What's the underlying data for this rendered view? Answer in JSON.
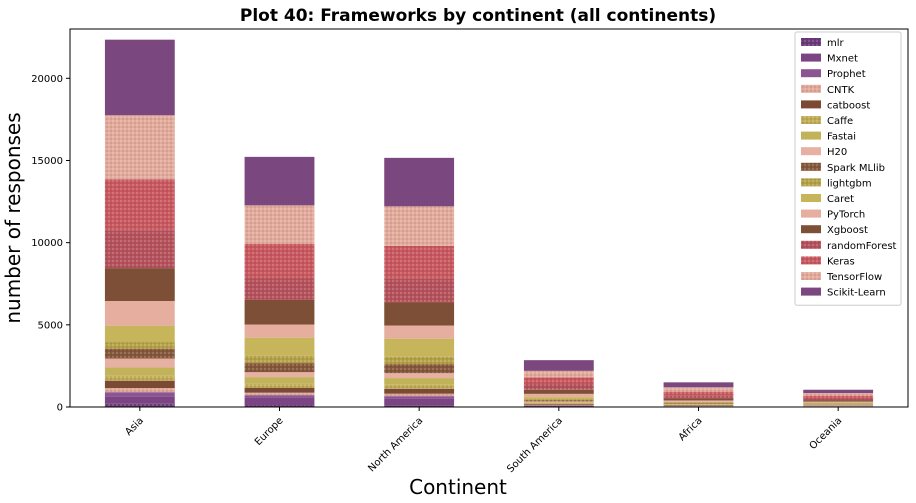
{
  "chart_data": {
    "type": "bar",
    "stacked": true,
    "title": "Plot 40: Frameworks by continent (all continents)",
    "xlabel": "Continent",
    "ylabel": "number of responses",
    "ylim": [
      0,
      23000
    ],
    "yticks": [
      0,
      5000,
      10000,
      15000,
      20000
    ],
    "categories": [
      "Asia",
      "Europe",
      "North America",
      "South America",
      "Africa",
      "Oceania"
    ],
    "legend_position": "top-right",
    "series": [
      {
        "name": "mlr",
        "color": "#6b3a7a",
        "pattern": "dots",
        "values": [
          200,
          120,
          110,
          20,
          10,
          10
        ]
      },
      {
        "name": "Mxnet",
        "color": "#7b4583",
        "pattern": "none",
        "values": [
          450,
          450,
          400,
          40,
          20,
          20
        ]
      },
      {
        "name": "Prophet",
        "color": "#8a5592",
        "pattern": "none",
        "values": [
          250,
          150,
          150,
          30,
          15,
          15
        ]
      },
      {
        "name": "CNTK",
        "color": "#e2a99b",
        "pattern": "dots",
        "values": [
          250,
          150,
          150,
          30,
          15,
          15
        ]
      },
      {
        "name": "catboost",
        "color": "#7b4a35",
        "pattern": "none",
        "values": [
          450,
          300,
          300,
          50,
          30,
          20
        ]
      },
      {
        "name": "Caffe",
        "color": "#c0ad55",
        "pattern": "dots",
        "values": [
          300,
          250,
          250,
          50,
          30,
          20
        ]
      },
      {
        "name": "Fastai",
        "color": "#c2b35a",
        "pattern": "none",
        "values": [
          500,
          400,
          400,
          60,
          40,
          30
        ]
      },
      {
        "name": "H20",
        "color": "#e6b0a2",
        "pattern": "none",
        "values": [
          550,
          300,
          300,
          60,
          40,
          30
        ]
      },
      {
        "name": "Spark MLlib",
        "color": "#85583b",
        "pattern": "dots",
        "values": [
          600,
          550,
          550,
          80,
          40,
          40
        ]
      },
      {
        "name": "lightgbm",
        "color": "#b5a248",
        "pattern": "dots",
        "values": [
          400,
          450,
          450,
          60,
          30,
          30
        ]
      },
      {
        "name": "Caret",
        "color": "#c7b55c",
        "pattern": "none",
        "values": [
          1000,
          1100,
          1100,
          120,
          50,
          40
        ]
      },
      {
        "name": "PyTorch",
        "color": "#e5ae9f",
        "pattern": "none",
        "values": [
          1500,
          800,
          800,
          200,
          80,
          60
        ]
      },
      {
        "name": "Xgboost",
        "color": "#7e4f37",
        "pattern": "none",
        "values": [
          2000,
          1500,
          1400,
          250,
          120,
          90
        ]
      },
      {
        "name": "randomForest",
        "color": "#b5525c",
        "pattern": "dots",
        "values": [
          2300,
          1300,
          1450,
          350,
          160,
          100
        ]
      },
      {
        "name": "Keras",
        "color": "#c95860",
        "pattern": "dots",
        "values": [
          3100,
          2100,
          2000,
          400,
          250,
          150
        ]
      },
      {
        "name": "TensorFlow",
        "color": "#e3ab9c",
        "pattern": "dots",
        "values": [
          3900,
          2350,
          2400,
          400,
          270,
          180
        ]
      },
      {
        "name": "Scikit-Learn",
        "color": "#7b477f",
        "pattern": "none",
        "values": [
          4600,
          2950,
          2950,
          650,
          300,
          200
        ]
      }
    ]
  }
}
